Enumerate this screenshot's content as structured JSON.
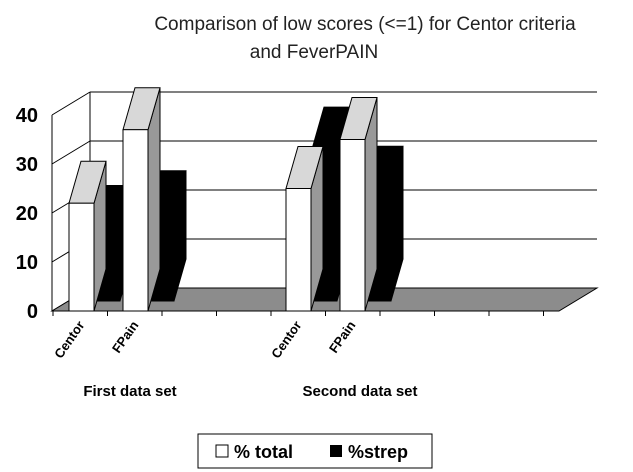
{
  "chart_data": {
    "type": "bar",
    "title_lines": [
      "Comparison of low scores (<=1) for Centor criteria",
      "and FeverPAIN"
    ],
    "categories": [
      "Centor",
      "FPain",
      "Centor",
      "FPain"
    ],
    "groups": [
      {
        "label": "First  data set",
        "categories": [
          "Centor",
          "FPain"
        ]
      },
      {
        "label": "Second data set",
        "categories": [
          "Centor",
          "FPain"
        ]
      }
    ],
    "series": [
      {
        "name": "% total",
        "values": [
          22,
          37,
          25,
          35
        ]
      },
      {
        "name": "%strep",
        "values": [
          15,
          18,
          31,
          23
        ]
      }
    ],
    "yticks": [
      "0",
      "10",
      "20",
      "30",
      "40"
    ],
    "ylim": [
      0,
      40
    ],
    "legend_position": "bottom",
    "grid": true,
    "colors": {
      "total": "#ffffff",
      "strep": "#000000",
      "side": "#999999",
      "top": "#d8d8d8",
      "floor": "#8c8c8c"
    }
  }
}
